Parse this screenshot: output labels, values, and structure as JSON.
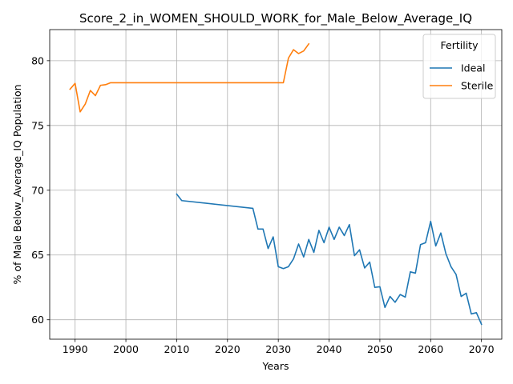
{
  "chart_data": {
    "type": "line",
    "title": "Score_2_in_WOMEN_SHOULD_WORK_for_Male_Below_Average_IQ",
    "xlabel": "Years",
    "ylabel": "% of Male Below_Average_IQ Population",
    "xlim": [
      1985,
      2074
    ],
    "ylim": [
      58.5,
      82.4
    ],
    "xticks": [
      1990,
      2000,
      2010,
      2020,
      2030,
      2040,
      2050,
      2060,
      2070
    ],
    "yticks": [
      60,
      65,
      70,
      75,
      80
    ],
    "grid": true,
    "legend": {
      "title": "Fertility",
      "placement": "top-right"
    },
    "series": [
      {
        "name": "Ideal",
        "color": "#1f77b4",
        "x": [
          2010,
          2011,
          2025,
          2026,
          2027,
          2028,
          2029,
          2030,
          2031,
          2032,
          2033,
          2034,
          2035,
          2036,
          2037,
          2038,
          2039,
          2040,
          2041,
          2042,
          2043,
          2044,
          2045,
          2046,
          2047,
          2048,
          2049,
          2050,
          2051,
          2052,
          2053,
          2054,
          2055,
          2056,
          2057,
          2058,
          2059,
          2060,
          2061,
          2062,
          2063,
          2064,
          2065,
          2066,
          2067,
          2068,
          2069,
          2070
        ],
        "y": [
          69.7,
          69.2,
          68.6,
          67.0,
          67.0,
          65.5,
          66.4,
          64.1,
          63.95,
          64.1,
          64.7,
          65.85,
          64.85,
          66.2,
          65.2,
          66.9,
          65.95,
          67.15,
          66.2,
          67.15,
          66.5,
          67.35,
          64.95,
          65.4,
          64.0,
          64.45,
          62.5,
          62.55,
          60.95,
          61.8,
          61.35,
          61.95,
          61.75,
          63.7,
          63.6,
          65.8,
          65.95,
          67.6,
          65.7,
          66.7,
          65.1,
          64.1,
          63.5,
          61.8,
          62.05,
          60.45,
          60.55,
          59.65
        ]
      },
      {
        "name": "Sterile",
        "color": "#ff7f0e",
        "x": [
          1989,
          1990,
          1991,
          1992,
          1993,
          1994,
          1995,
          1996,
          1997,
          2031,
          2032,
          2033,
          2034,
          2035,
          2036
        ],
        "y": [
          77.8,
          78.25,
          76.05,
          76.65,
          77.7,
          77.3,
          78.1,
          78.15,
          78.3,
          78.3,
          80.2,
          80.85,
          80.55,
          80.75,
          81.3
        ]
      }
    ]
  }
}
